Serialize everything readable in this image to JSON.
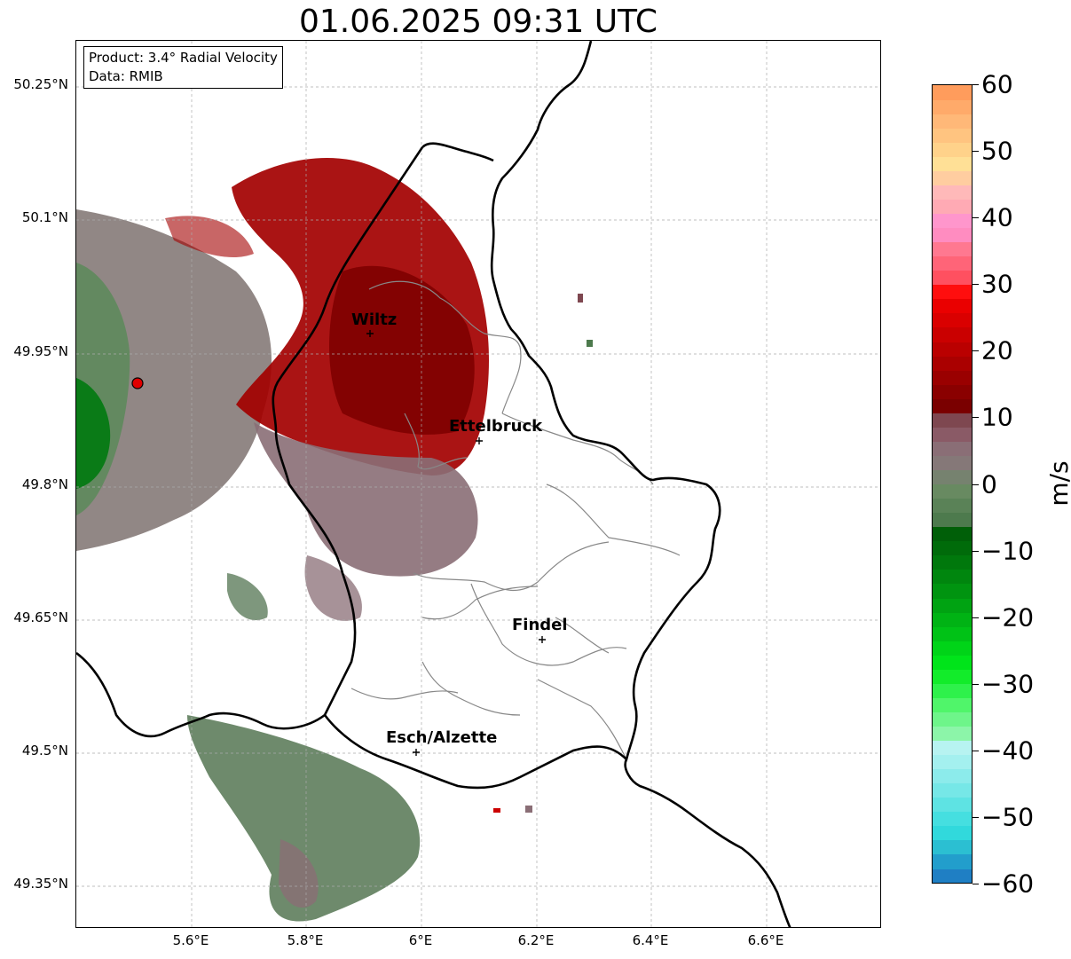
{
  "title": "01.06.2025 09:31 UTC",
  "info_box": {
    "product": "Product: 3.4° Radial Velocity",
    "data": "Data: RMIB"
  },
  "map": {
    "lon_range": [
      5.4,
      6.8
    ],
    "lat_range": [
      49.3,
      50.3
    ],
    "lat_ticks": [
      {
        "value": 50.25,
        "label": "50.25°N"
      },
      {
        "value": 50.1,
        "label": "50.1°N"
      },
      {
        "value": 49.95,
        "label": "49.95°N"
      },
      {
        "value": 49.8,
        "label": "49.8°N"
      },
      {
        "value": 49.65,
        "label": "49.65°N"
      },
      {
        "value": 49.5,
        "label": "49.5°N"
      },
      {
        "value": 49.35,
        "label": "49.35°N"
      }
    ],
    "lon_ticks": [
      {
        "value": 5.6,
        "label": "5.6°E"
      },
      {
        "value": 5.8,
        "label": "5.8°E"
      },
      {
        "value": 6.0,
        "label": "6°E"
      },
      {
        "value": 6.2,
        "label": "6.2°E"
      },
      {
        "value": 6.4,
        "label": "6.4°E"
      },
      {
        "value": 6.6,
        "label": "6.6°E"
      }
    ],
    "radar_site": {
      "lon": 5.505,
      "lat": 49.915
    },
    "cities": [
      {
        "name": "Wiltz",
        "lon": 5.93,
        "lat": 49.97
      },
      {
        "name": "Ettelbruck",
        "lon": 6.1,
        "lat": 49.85
      },
      {
        "name": "Findel",
        "lon": 6.21,
        "lat": 49.63
      },
      {
        "name": "Esch/Alzette",
        "lon": 5.99,
        "lat": 49.5
      }
    ]
  },
  "colorbar": {
    "unit": "m/s",
    "min": -60,
    "max": 60,
    "ticks": [
      {
        "value": 60,
        "label": "60"
      },
      {
        "value": 50,
        "label": "50"
      },
      {
        "value": 40,
        "label": "40"
      },
      {
        "value": 30,
        "label": "30"
      },
      {
        "value": 20,
        "label": "20"
      },
      {
        "value": 10,
        "label": "10"
      },
      {
        "value": 0,
        "label": "0"
      },
      {
        "value": -10,
        "label": "−10"
      },
      {
        "value": -20,
        "label": "−20"
      },
      {
        "value": -30,
        "label": "−30"
      },
      {
        "value": -40,
        "label": "−40"
      },
      {
        "value": -50,
        "label": "−50"
      },
      {
        "value": -60,
        "label": "−60"
      }
    ],
    "colors": [
      "#1f7fc4",
      "#229ecc",
      "#2bbfd2",
      "#31d9dc",
      "#45dfe0",
      "#5ee3e3",
      "#76e7e7",
      "#8cebeb",
      "#a4f0ef",
      "#b7f3f1",
      "#8cf5a9",
      "#6ef58a",
      "#50f56a",
      "#2ef14b",
      "#12ec2a",
      "#00e41a",
      "#00d418",
      "#00c216",
      "#00b314",
      "#00a312",
      "#009410",
      "#00860e",
      "#00780c",
      "#006b0a",
      "#005f08",
      "#4d7a4d",
      "#5a8257",
      "#688a61",
      "#76826f",
      "#857878",
      "#8a6e76",
      "#8a5a66",
      "#7e4750",
      "#7a0000",
      "#8a0000",
      "#9a0000",
      "#aa0000",
      "#ba0000",
      "#ca0000",
      "#da0000",
      "#ea0000",
      "#ff0e0e",
      "#ff5060",
      "#ff6478",
      "#ff7890",
      "#ff8cc0",
      "#ff96cc",
      "#ffaab4",
      "#ffb9b9",
      "#ffcda0",
      "#ffe096",
      "#ffd28a",
      "#ffc480",
      "#ffb878",
      "#ffaa6a",
      "#ff9c5c"
    ]
  }
}
